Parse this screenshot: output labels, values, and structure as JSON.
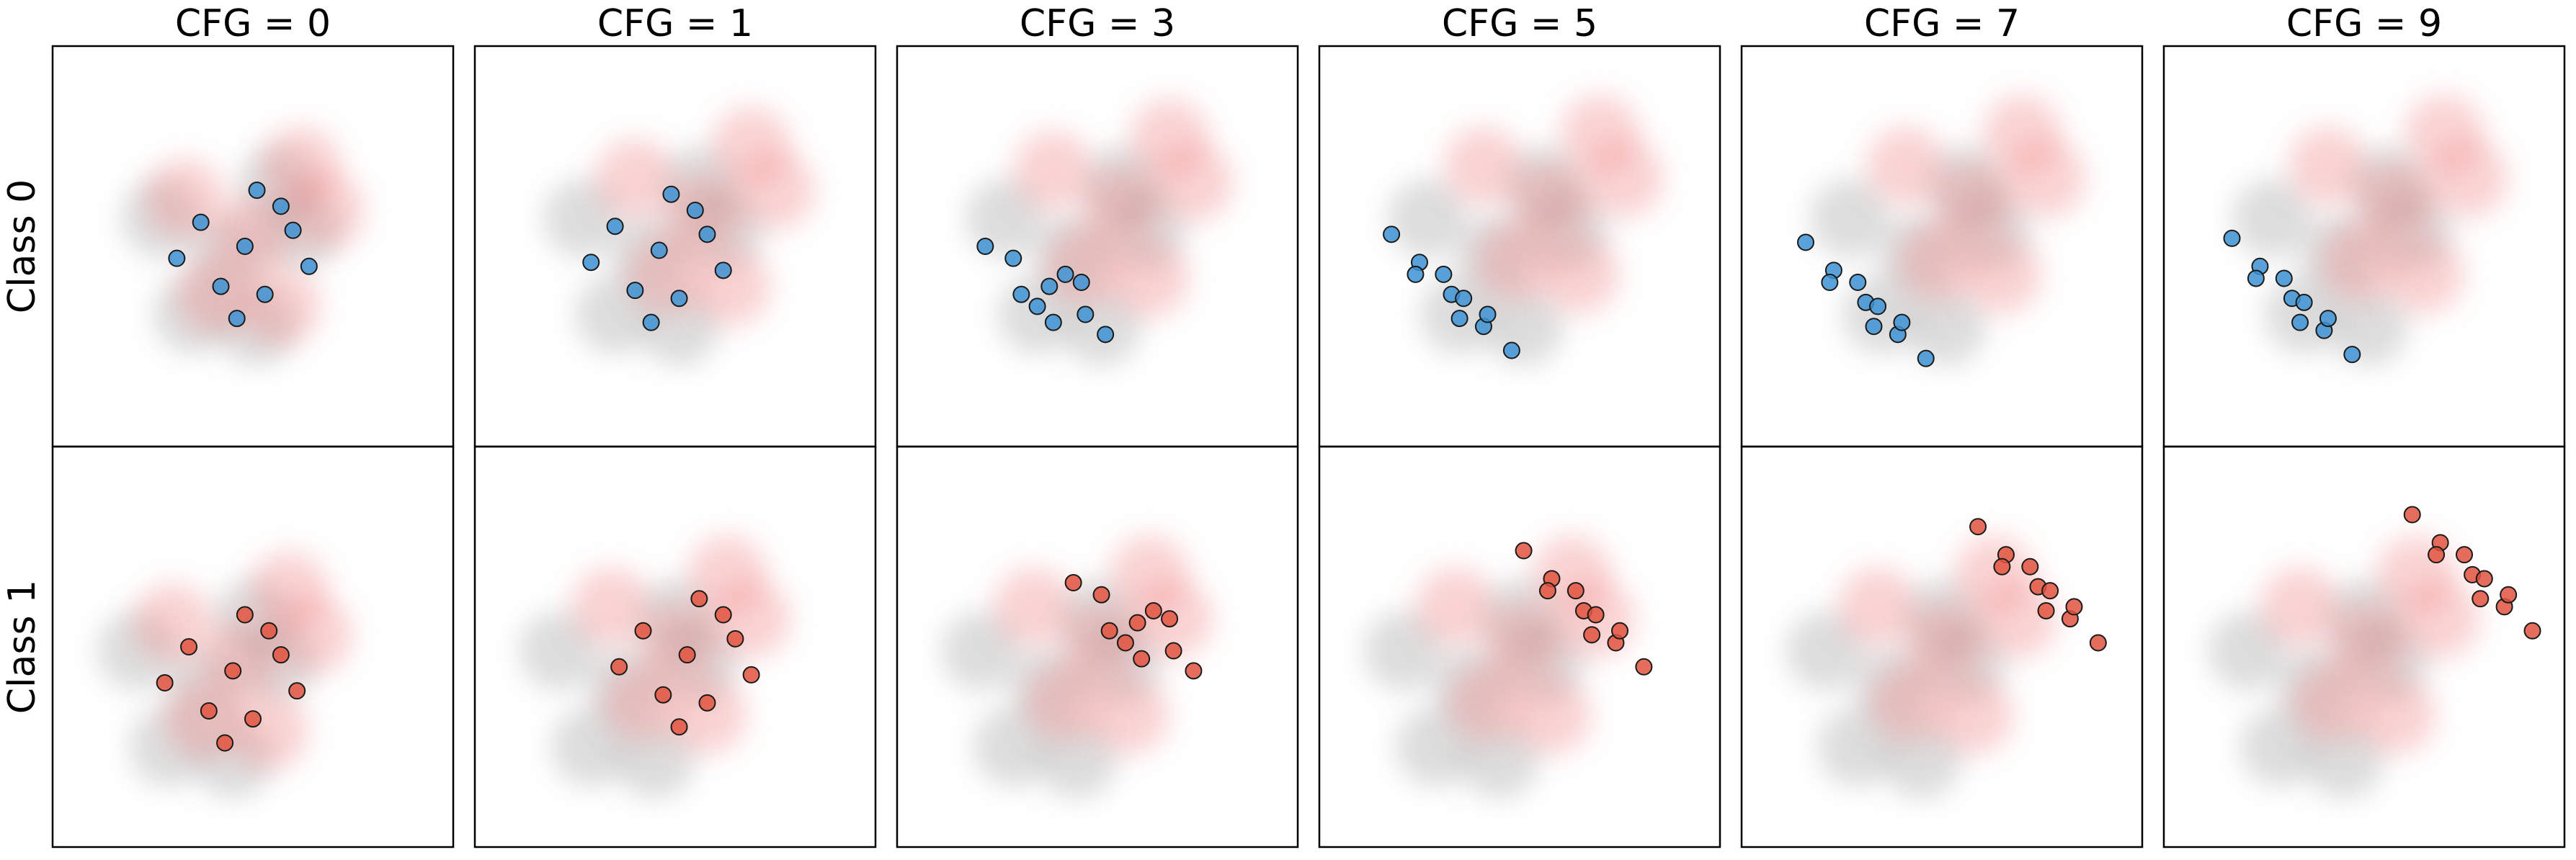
{
  "chart_data": {
    "type": "scatter",
    "columns": [
      "CFG = 0",
      "CFG = 1",
      "CFG = 3",
      "CFG = 5",
      "CFG = 7",
      "CFG = 9"
    ],
    "rows": [
      "Class 0",
      "Class 1"
    ],
    "xlim": [
      -5,
      5
    ],
    "ylim": [
      -5,
      5
    ],
    "panels": [
      [
        {
          "series": [
            {
              "color": "#9e9e9e",
              "background": true,
              "x": [
                -0.6,
                1.2,
                -2.3,
                0.1,
                -1.5,
                0.6
              ],
              "y": [
                -0.2,
                0.4,
                0.7,
                -2.0,
                -1.7,
                1.5
              ]
            },
            {
              "color": "#f08080",
              "background": true,
              "x": [
                0,
                1.8,
                -1.7,
                0.7,
                -0.9,
                1.2
              ],
              "y": [
                0.3,
                0.9,
                1.2,
                -1.5,
                -1.2,
                2.0
              ]
            },
            {
              "color": "#3d93d4",
              "x": [
                -0.2,
                1.0,
                -1.3,
                0.3,
                -0.8,
                1.4,
                -1.9,
                0.1,
                -0.4,
                0.7
              ],
              "y": [
                0,
                0.4,
                0.6,
                -1.2,
                -1.0,
                -0.5,
                -0.3,
                1.4,
                -1.8,
                1.0
              ]
            }
          ]
        },
        {
          "series": [
            {
              "color": "#9e9e9e",
              "background": true,
              "x": [
                -0.6,
                1.2,
                -2.3,
                0.1,
                -1.5,
                0.6
              ],
              "y": [
                -0.2,
                0.4,
                0.7,
                -2.0,
                -1.7,
                1.5
              ]
            },
            {
              "color": "#f08080",
              "background": true,
              "x": [
                0.7,
                2.5,
                -1.0,
                1.4,
                -0.2,
                1.9
              ],
              "y": [
                0.8,
                1.4,
                1.7,
                -1.0,
                -0.7,
                2.5
              ]
            },
            {
              "color": "#3d93d4",
              "x": [
                -0.4,
                0.8,
                -1.5,
                0.1,
                -1.0,
                1.2,
                -2.1,
                -0.1,
                -0.6,
                0.5
              ],
              "y": [
                -0.1,
                0.3,
                0.5,
                -1.3,
                -1.1,
                -0.6,
                -0.4,
                1.3,
                -1.9,
                0.9
              ]
            }
          ]
        },
        {
          "series": [
            {
              "color": "#9e9e9e",
              "background": true,
              "x": [
                -0.6,
                1.2,
                -2.3,
                0.1,
                -1.5,
                0.6
              ],
              "y": [
                -0.2,
                0.4,
                0.7,
                -2.0,
                -1.7,
                1.5
              ]
            },
            {
              "color": "#f08080",
              "background": true,
              "x": [
                0.6,
                2.4,
                -1.1,
                1.3,
                -0.3,
                1.8
              ],
              "y": [
                1.0,
                1.6,
                1.9,
                -0.8,
                -0.5,
                2.7
              ]
            },
            {
              "color": "#3d93d4",
              "x": [
                -1.2,
                -0.3,
                -2.1,
                0.2,
                -2.8,
                -0.8,
                -1.5,
                -0.4,
                -1.9,
                -1.1
              ],
              "y": [
                -1.0,
                -1.7,
                -0.3,
                -2.2,
                0.0,
                -0.7,
                -1.5,
                -0.9,
                -1.2,
                -1.9
              ]
            }
          ]
        },
        {
          "series": [
            {
              "color": "#9e9e9e",
              "background": true,
              "x": [
                -0.6,
                1.2,
                -2.3,
                0.1,
                -1.5,
                0.6
              ],
              "y": [
                -0.2,
                0.4,
                0.7,
                -2.0,
                -1.7,
                1.5
              ]
            },
            {
              "color": "#f08080",
              "background": true,
              "x": [
                0.8,
                2.6,
                -0.9,
                1.5,
                -0.1,
                2.0
              ],
              "y": [
                1.1,
                1.7,
                2.0,
                -0.7,
                -0.4,
                2.8
              ]
            },
            {
              "color": "#3d93d4",
              "x": [
                -1.7,
                -0.9,
                -2.5,
                -0.2,
                -3.2,
                -1.4,
                -1.9,
                -0.8,
                -2.6,
                -1.5
              ],
              "y": [
                -1.2,
                -2.0,
                -0.4,
                -2.6,
                0.3,
                -1.3,
                -0.7,
                -1.7,
                -0.7,
                -1.8
              ]
            }
          ]
        },
        {
          "series": [
            {
              "color": "#9e9e9e",
              "background": true,
              "x": [
                -0.6,
                1.2,
                -2.3,
                0.1,
                -1.5,
                0.6
              ],
              "y": [
                -0.2,
                0.4,
                0.7,
                -2.0,
                -1.7,
                1.5
              ]
            },
            {
              "color": "#f08080",
              "background": true,
              "x": [
                0.8,
                2.6,
                -0.9,
                1.5,
                -0.1,
                2.0
              ],
              "y": [
                1.1,
                1.7,
                2.0,
                -0.7,
                -0.4,
                2.8
              ]
            },
            {
              "color": "#3d93d4",
              "x": [
                -1.9,
                -1.1,
                -2.7,
                -0.4,
                -3.4,
                -1.6,
                -2.1,
                -1.0,
                -2.8,
                -1.7
              ],
              "y": [
                -1.4,
                -2.2,
                -0.6,
                -2.8,
                0.1,
                -1.5,
                -0.9,
                -1.9,
                -0.9,
                -2.0
              ]
            }
          ]
        },
        {
          "series": [
            {
              "color": "#9e9e9e",
              "background": true,
              "x": [
                -0.6,
                1.2,
                -2.3,
                0.1,
                -1.5,
                0.6
              ],
              "y": [
                -0.2,
                0.4,
                0.7,
                -2.0,
                -1.7,
                1.5
              ]
            },
            {
              "color": "#f08080",
              "background": true,
              "x": [
                0.8,
                2.6,
                -0.9,
                1.5,
                -0.1,
                2.0
              ],
              "y": [
                1.1,
                1.7,
                2.0,
                -0.7,
                -0.4,
                2.8
              ]
            },
            {
              "color": "#3d93d4",
              "x": [
                -1.8,
                -1.0,
                -2.6,
                -0.3,
                -3.3,
                -1.5,
                -2.0,
                -0.9,
                -2.7,
                -1.6
              ],
              "y": [
                -1.3,
                -2.1,
                -0.5,
                -2.7,
                0.2,
                -1.4,
                -0.8,
                -1.8,
                -0.8,
                -1.9
              ]
            }
          ]
        }
      ],
      [
        {
          "series": [
            {
              "color": "#9e9e9e",
              "background": true,
              "x": [
                -1.2,
                0.6,
                -2.9,
                -0.5,
                -2.1,
                0.0
              ],
              "y": [
                -1.0,
                -0.4,
                -0.1,
                -2.8,
                -2.5,
                0.7
              ]
            },
            {
              "color": "#f08080",
              "background": true,
              "x": [
                -0.3,
                1.5,
                -2.0,
                0.4,
                -1.2,
                0.9
              ],
              "y": [
                -0.3,
                0.3,
                0.6,
                -2.1,
                -1.8,
                1.4
              ]
            },
            {
              "color": "#e0533f",
              "x": [
                -0.5,
                0.7,
                -1.6,
                0.0,
                -1.1,
                1.1,
                -2.2,
                -0.2,
                -0.7,
                0.4
              ],
              "y": [
                -0.6,
                -0.2,
                0.0,
                -1.8,
                -1.6,
                -1.1,
                -0.9,
                0.8,
                -2.4,
                0.4
              ]
            }
          ]
        },
        {
          "series": [
            {
              "color": "#9e9e9e",
              "background": true,
              "x": [
                -1.2,
                0.6,
                -2.9,
                -0.5,
                -2.1,
                0.0
              ],
              "y": [
                -1.0,
                -0.4,
                -0.1,
                -2.8,
                -2.5,
                0.7
              ]
            },
            {
              "color": "#f08080",
              "background": true,
              "x": [
                0.1,
                1.9,
                -1.6,
                0.8,
                -0.8,
                1.3
              ],
              "y": [
                0.1,
                0.7,
                1.0,
                -1.7,
                -1.4,
                1.8
              ]
            },
            {
              "color": "#e0533f",
              "x": [
                0.3,
                1.5,
                -0.8,
                0.8,
                -0.3,
                1.9,
                -1.4,
                0.6,
                0.1,
                1.2
              ],
              "y": [
                -0.2,
                0.2,
                0.4,
                -1.4,
                -1.2,
                -0.7,
                -0.5,
                1.2,
                -2.0,
                0.8
              ]
            }
          ]
        },
        {
          "series": [
            {
              "color": "#9e9e9e",
              "background": true,
              "x": [
                -1.2,
                0.6,
                -2.9,
                -0.5,
                -2.1,
                0.0
              ],
              "y": [
                -1.0,
                -0.4,
                -0.1,
                -2.8,
                -2.5,
                0.7
              ]
            },
            {
              "color": "#f08080",
              "background": true,
              "x": [
                0.1,
                1.9,
                -1.6,
                0.8,
                -0.8,
                1.3
              ],
              "y": [
                0.1,
                0.7,
                1.0,
                -1.7,
                -1.4,
                1.8
              ]
            },
            {
              "color": "#e0533f",
              "x": [
                1.0,
                1.9,
                0.1,
                2.4,
                -0.6,
                1.4,
                0.7,
                1.8,
                0.3,
                1.1
              ],
              "y": [
                0.6,
                -0.1,
                1.3,
                -0.6,
                1.6,
                0.9,
                0.1,
                0.7,
                0.4,
                -0.3
              ]
            }
          ]
        },
        {
          "series": [
            {
              "color": "#9e9e9e",
              "background": true,
              "x": [
                -1.2,
                0.6,
                -2.9,
                -0.5,
                -2.1,
                0.0
              ],
              "y": [
                -1.0,
                -0.4,
                -0.1,
                -2.8,
                -2.5,
                0.7
              ]
            },
            {
              "color": "#f08080",
              "background": true,
              "x": [
                0.1,
                1.9,
                -1.6,
                0.8,
                -0.8,
                1.3
              ],
              "y": [
                0.1,
                0.7,
                1.0,
                -1.7,
                -1.4,
                1.8
              ]
            },
            {
              "color": "#e0533f",
              "x": [
                1.6,
                2.4,
                0.8,
                3.1,
                0.1,
                1.9,
                1.4,
                2.5,
                0.7,
                1.8
              ],
              "y": [
                0.9,
                0.1,
                1.7,
                -0.5,
                2.4,
                0.8,
                1.4,
                0.4,
                1.4,
                0.3
              ]
            }
          ]
        },
        {
          "series": [
            {
              "color": "#9e9e9e",
              "background": true,
              "x": [
                -1.2,
                0.6,
                -2.9,
                -0.5,
                -2.1,
                0.0
              ],
              "y": [
                -1.0,
                -0.4,
                -0.1,
                -2.8,
                -2.5,
                0.7
              ]
            },
            {
              "color": "#f08080",
              "background": true,
              "x": [
                0.1,
                1.9,
                -1.6,
                0.8,
                -0.8,
                1.3
              ],
              "y": [
                0.1,
                0.7,
                1.0,
                -1.7,
                -1.4,
                1.8
              ]
            },
            {
              "color": "#e0533f",
              "x": [
                2.4,
                3.2,
                1.6,
                3.9,
                0.9,
                2.7,
                2.2,
                3.3,
                1.5,
                2.6
              ],
              "y": [
                1.5,
                0.7,
                2.3,
                0.1,
                3.0,
                1.4,
                2.0,
                1.0,
                2.0,
                0.9
              ]
            }
          ]
        },
        {
          "series": [
            {
              "color": "#9e9e9e",
              "background": true,
              "x": [
                -1.2,
                0.6,
                -2.9,
                -0.5,
                -2.1,
                0.0
              ],
              "y": [
                -1.0,
                -0.4,
                -0.1,
                -2.8,
                -2.5,
                0.7
              ]
            },
            {
              "color": "#f08080",
              "background": true,
              "x": [
                0.1,
                1.9,
                -1.6,
                0.8,
                -0.8,
                1.3
              ],
              "y": [
                0.1,
                0.7,
                1.0,
                -1.7,
                -1.4,
                1.8
              ]
            },
            {
              "color": "#e0533f",
              "x": [
                2.7,
                3.5,
                1.9,
                4.2,
                1.2,
                3.0,
                2.5,
                3.6,
                1.8,
                2.9
              ],
              "y": [
                1.8,
                1.0,
                2.6,
                0.4,
                3.3,
                1.7,
                2.3,
                1.3,
                2.3,
                1.2
              ]
            }
          ]
        }
      ]
    ]
  }
}
